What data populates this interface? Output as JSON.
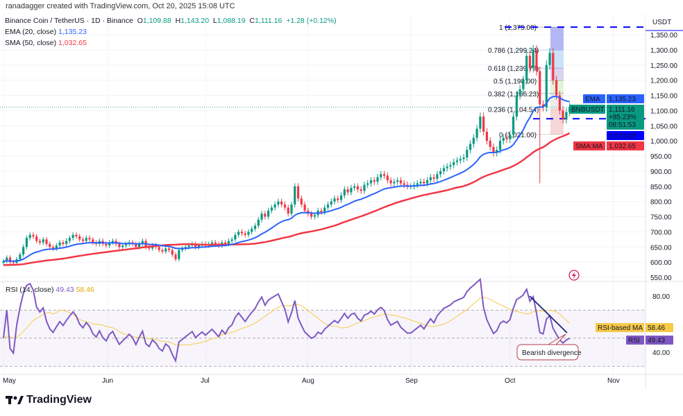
{
  "credit": "ranadagger created with TradingView.com, Oct 20, 2025 15:08 UTC",
  "symbol": {
    "name": "Binance Coin / TetherUS · 1D · Binance",
    "o_label": "O",
    "o": "1,109.88",
    "h_label": "H",
    "h": "1,143.20",
    "l_label": "L",
    "l": "1,088.19",
    "c_label": "C",
    "c": "1,111.16",
    "change": "+1.28 (+0.12%)"
  },
  "indicators": {
    "ema_label": "EMA (20, close)",
    "ema_value": "1,135.23",
    "sma_label": "SMA (50, close)",
    "sma_value": "1,032.65",
    "rsi_label": "RSI (14, close)",
    "rsi_value": "49.43",
    "rsi_ma_value": "58.46"
  },
  "price_axis": {
    "currency": "USDT",
    "ticks": [
      "1,350.00",
      "1,300.00",
      "1,250.00",
      "1,200.00",
      "1,150.00",
      "1,100.00",
      "1,050.00",
      "1,000.00",
      "950.00",
      "900.00",
      "850.00",
      "800.00",
      "750.00",
      "700.00",
      "650.00",
      "600.00",
      "550.00"
    ]
  },
  "badges": {
    "ema_tag": "EMA",
    "ema": "1,135.23",
    "symbol_tag": "BNBUSDT",
    "price": "1,111.16",
    "pct": "+85.23%",
    "countdown": "08:51:53",
    "level": "1,073.00",
    "sma_tag": "SMA:MA",
    "sma": "1,032.65",
    "rsi_ma_tag": "RSI-based MA",
    "rsi_ma": "58.46",
    "rsi_tag": "RSI",
    "rsi": "49.43"
  },
  "rsi_axis": {
    "ticks": [
      "80.00",
      "40.00"
    ]
  },
  "time_axis": [
    "May",
    "Jun",
    "Jul",
    "Aug",
    "Sep",
    "Oct",
    "Nov"
  ],
  "fib": [
    {
      "ratio": "1",
      "price": "1,375.00"
    },
    {
      "ratio": "0.786",
      "price": "1,299.24"
    },
    {
      "ratio": "0.618",
      "price": "1,239.77"
    },
    {
      "ratio": "0.5",
      "price": "1,198.00"
    },
    {
      "ratio": "0.382",
      "price": "1,156.23"
    },
    {
      "ratio": "0.236",
      "price": "1,104.54"
    },
    {
      "ratio": "0",
      "price": "1,021.00"
    }
  ],
  "annotation": "Bearish divergence",
  "footer": "TradingView",
  "colors": {
    "up": "#089981",
    "down": "#f23645",
    "ema": "#2962ff",
    "sma": "#f23645",
    "rsi": "#7e57c2",
    "rsi_ma": "#f7c948",
    "level": "#0000ff"
  },
  "chart_data": {
    "type": "candlestick",
    "interval": "1D",
    "start": "May 1",
    "end": "Oct 19",
    "ylim": [
      550,
      1375
    ],
    "rsi_ylim": [
      20,
      90
    ],
    "horizontal_levels": [
      1375,
      1073
    ],
    "closes": [
      603,
      615,
      600,
      598,
      610,
      625,
      650,
      680,
      690,
      685,
      670,
      665,
      675,
      660,
      650,
      645,
      655,
      665,
      660,
      670,
      680,
      690,
      685,
      675,
      670,
      680,
      675,
      665,
      660,
      670,
      660,
      655,
      665,
      670,
      660,
      650,
      655,
      660,
      665,
      660,
      650,
      660,
      670,
      650,
      645,
      655,
      650,
      640,
      635,
      645,
      640,
      625,
      610,
      640,
      645,
      650,
      655,
      660,
      650,
      655,
      660,
      655,
      660,
      665,
      660,
      655,
      665,
      660,
      670,
      675,
      690,
      700,
      695,
      690,
      700,
      710,
      720,
      740,
      760,
      750,
      770,
      780,
      790,
      800,
      790,
      780,
      760,
      790,
      850,
      810,
      790,
      770,
      760,
      750,
      755,
      770,
      765,
      780,
      790,
      800,
      810,
      805,
      820,
      840,
      830,
      845,
      850,
      840,
      835,
      855,
      860,
      870,
      865,
      880,
      890,
      885,
      870,
      860,
      865,
      870,
      860,
      855,
      850,
      850,
      855,
      860,
      865,
      860,
      870,
      880,
      875,
      890,
      900,
      910,
      915,
      920,
      930,
      935,
      940,
      945,
      970,
      990,
      1010,
      1040,
      1080,
      1030,
      1000,
      980,
      960,
      970,
      1000,
      1010,
      1005,
      1020,
      1080,
      1150,
      1170,
      1200,
      1280,
      1240,
      1300,
      1230,
      1120,
      1110,
      1250,
      1290,
      1200,
      1150,
      1100,
      1070,
      1095,
      1111.16
    ],
    "notable_low": {
      "date": "Oct 10",
      "value": 860
    }
  }
}
